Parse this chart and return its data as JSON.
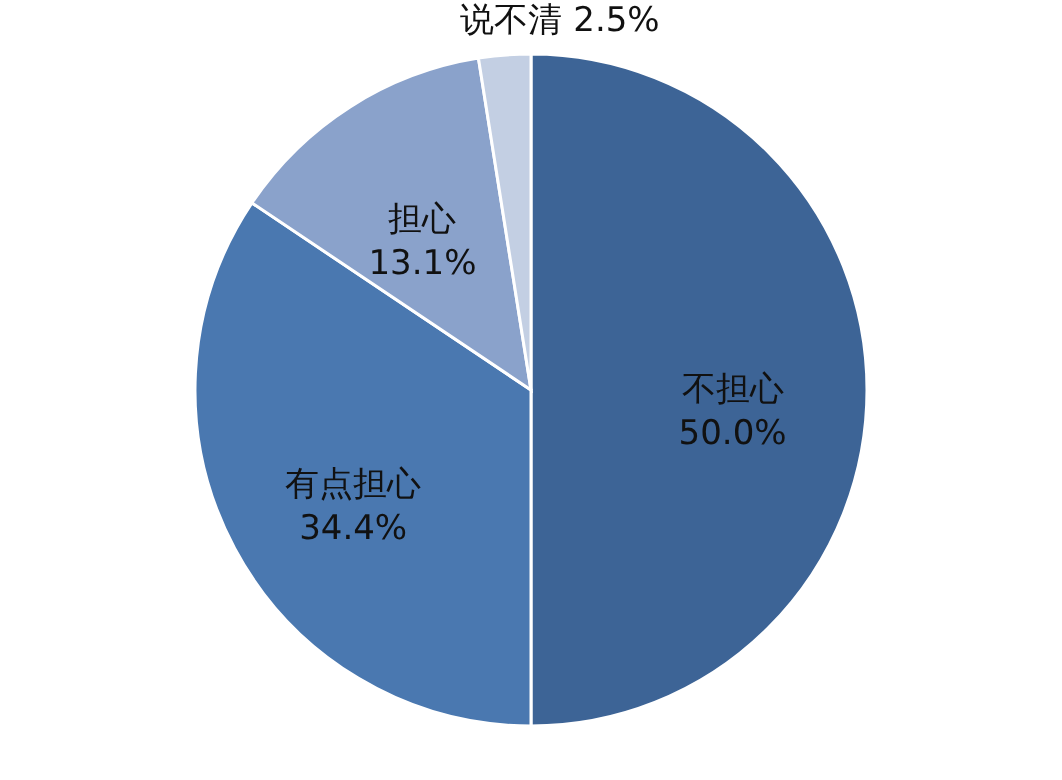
{
  "chart_data": {
    "type": "pie",
    "categories": [
      "不担心",
      "有点担心",
      "担心",
      "说不清"
    ],
    "values": [
      50.0,
      34.4,
      13.1,
      2.5
    ],
    "value_labels": [
      "50.0%",
      "34.4%",
      "13.1%",
      "2.5%"
    ],
    "colors": [
      "#3d6496",
      "#4a78b0",
      "#8aa2cb",
      "#c3cfe3"
    ],
    "legend": false
  }
}
